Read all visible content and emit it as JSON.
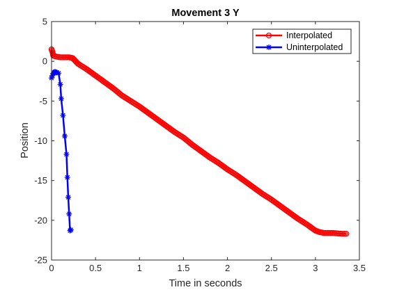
{
  "chart_data": {
    "type": "line",
    "title": "Movement 3 Y",
    "xlabel": "Time in seconds",
    "ylabel": "Position",
    "xlim": [
      0,
      3.5
    ],
    "ylim": [
      -25,
      5
    ],
    "xticks": [
      0,
      0.5,
      1,
      1.5,
      2,
      2.5,
      3,
      3.5
    ],
    "xtick_labels": [
      "0",
      "0.5",
      "1",
      "1.5",
      "2",
      "2.5",
      "3",
      "3.5"
    ],
    "yticks": [
      5,
      0,
      -5,
      -10,
      -15,
      -20,
      -25
    ],
    "ytick_labels": [
      "5",
      "0",
      "-5",
      "-10",
      "-15",
      "-20",
      "-25"
    ],
    "grid": false,
    "legend_position": "top-right",
    "series": [
      {
        "name": "Interpolated",
        "color": "#ff0000",
        "marker": "circle",
        "x": [
          0.0,
          0.01,
          0.02,
          0.05,
          0.1,
          0.15,
          0.2,
          0.24,
          0.3,
          0.4,
          0.5,
          0.6,
          0.7,
          0.8,
          0.9,
          1.0,
          1.1,
          1.2,
          1.3,
          1.4,
          1.5,
          1.6,
          1.7,
          1.8,
          1.9,
          2.0,
          2.1,
          2.2,
          2.3,
          2.4,
          2.5,
          2.6,
          2.7,
          2.8,
          2.9,
          3.0,
          3.05,
          3.1,
          3.2,
          3.3,
          3.35
        ],
        "y": [
          1.5,
          1.2,
          0.7,
          0.6,
          0.5,
          0.5,
          0.5,
          0.4,
          -0.3,
          -1.0,
          -1.8,
          -2.6,
          -3.4,
          -4.3,
          -5.0,
          -5.7,
          -6.5,
          -7.3,
          -8.1,
          -8.9,
          -9.6,
          -10.5,
          -11.3,
          -12.1,
          -12.8,
          -13.6,
          -14.3,
          -15.1,
          -15.9,
          -16.7,
          -17.4,
          -18.2,
          -19.0,
          -19.8,
          -20.5,
          -21.3,
          -21.5,
          -21.6,
          -21.6,
          -21.7,
          -21.7
        ]
      },
      {
        "name": "Uninterpolated",
        "color": "#0000ff",
        "marker": "asterisk",
        "x": [
          0.0,
          0.01,
          0.02,
          0.03,
          0.04,
          0.05,
          0.06,
          0.08,
          0.1,
          0.11,
          0.13,
          0.15,
          0.17,
          0.18,
          0.19,
          0.2,
          0.21,
          0.22
        ],
        "y": [
          -2.1,
          -1.8,
          -1.5,
          -1.4,
          -1.3,
          -1.4,
          -1.4,
          -1.5,
          -2.9,
          -4.7,
          -6.8,
          -9.4,
          -11.7,
          -14.6,
          -17.1,
          -19.2,
          -21.3,
          -21.2
        ]
      }
    ]
  }
}
